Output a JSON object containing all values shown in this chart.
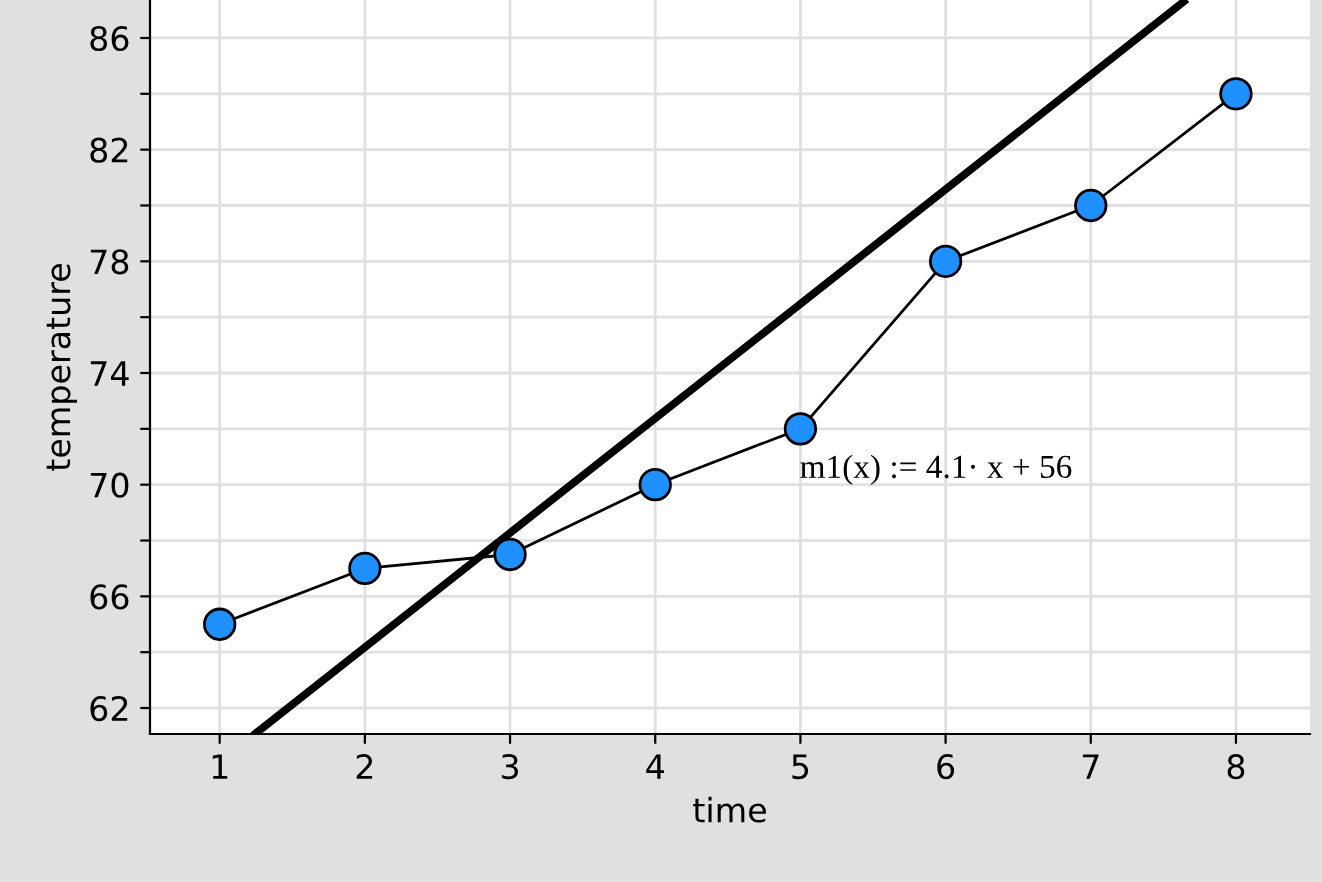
{
  "chart_data": {
    "type": "line",
    "xlabel": "time",
    "ylabel": "temperature",
    "x": [
      1,
      2,
      3,
      4,
      5,
      6,
      7,
      8
    ],
    "series": [
      {
        "color": "#1e90ff",
        "marker": "circle",
        "values": [
          65,
          67,
          67.5,
          70,
          72,
          78,
          80,
          84
        ]
      },
      {
        "type": "line",
        "color": "#000000",
        "marker": "none",
        "x": [
          1.25,
          7.64
        ],
        "values": [
          61.1,
          87.3
        ]
      }
    ],
    "xlim": [
      0.52,
      8.51
    ],
    "ylim": [
      61.07,
      87.36
    ],
    "xticks": [
      1,
      2,
      3,
      4,
      5,
      6,
      7,
      8
    ],
    "yticks": [
      62,
      {
        "value": 64,
        "label": null
      },
      66,
      {
        "value": 68,
        "label": null
      },
      70,
      {
        "value": 72,
        "label": null
      },
      74,
      {
        "value": 76,
        "label": null
      },
      78,
      {
        "value": 80,
        "label": null
      },
      82,
      {
        "value": 84,
        "label": null
      },
      86
    ],
    "grid": true,
    "annotations": [
      "m1(x) := 4.1· x + 56"
    ]
  }
}
